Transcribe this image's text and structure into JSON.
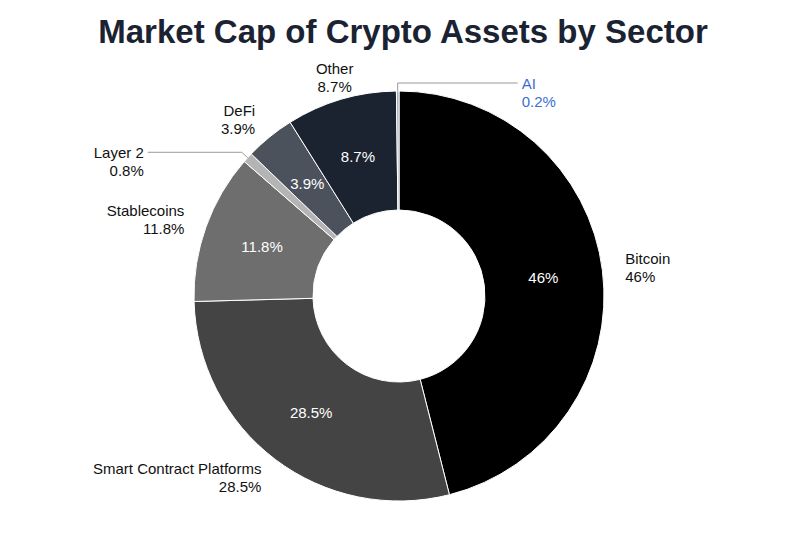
{
  "chart_data": {
    "type": "pie",
    "title": "Market Cap of Crypto Assets by Sector",
    "categories": [
      "Bitcoin",
      "Smart Contract Platforms",
      "Stablecoins",
      "Layer 2",
      "DeFi",
      "Other",
      "AI"
    ],
    "values": [
      46,
      28.5,
      11.8,
      0.8,
      3.9,
      8.7,
      0.2
    ],
    "value_labels": [
      "46%",
      "28.5%",
      "11.8%",
      "0.8%",
      "3.9%",
      "8.7%",
      "0.2%"
    ],
    "colors": [
      "#000000",
      "#444444",
      "#6e6e6e",
      "#b4b4b4",
      "#4b525c",
      "#1b2331",
      "#a3abb7"
    ],
    "data_labels": true
  }
}
